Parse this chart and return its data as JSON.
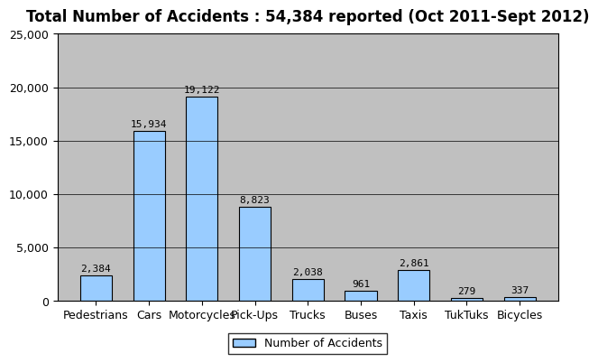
{
  "title": "Total Number of Accidents : 54,384 reported (Oct 2011-Sept 2012)",
  "categories": [
    "Pedestrians",
    "Cars",
    "Motorcycles",
    "Pick-Ups",
    "Trucks",
    "Buses",
    "Taxis",
    "TukTuks",
    "Bicycles"
  ],
  "values": [
    2384,
    15934,
    19122,
    8823,
    2038,
    961,
    2861,
    279,
    337
  ],
  "bar_color": "#99CCFF",
  "bar_edge_color": "#000000",
  "background_color": "#C0C0C0",
  "figure_background": "#FFFFFF",
  "ylim": [
    0,
    25000
  ],
  "yticks": [
    0,
    5000,
    10000,
    15000,
    20000,
    25000
  ],
  "legend_label": "Number of Accidents",
  "title_fontsize": 12,
  "tick_fontsize": 9,
  "label_fontsize": 9,
  "value_labels": [
    "2,384",
    "15,934",
    "19,122",
    "8,823",
    "2,038",
    "961",
    "2,861",
    "279",
    "337"
  ]
}
